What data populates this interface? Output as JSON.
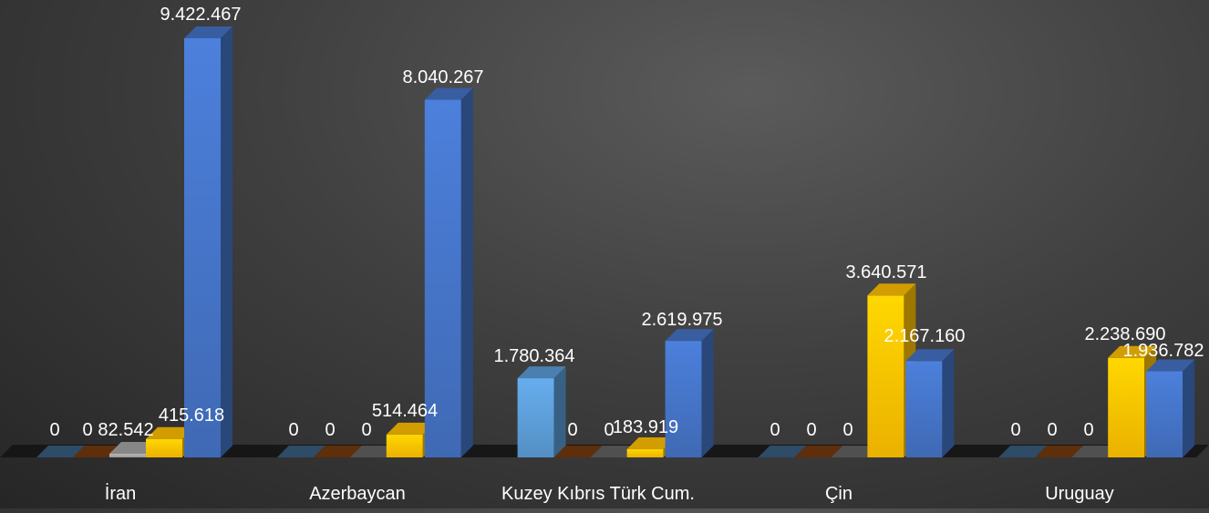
{
  "chart_data": {
    "type": "bar",
    "style": "3d-clustered-column",
    "title": "",
    "xlabel": "",
    "ylabel": "",
    "grid": false,
    "legend": "none",
    "categories": [
      "İran",
      "Azerbaycan",
      "Kuzey Kıbrıs Türk Cum.",
      "Çin",
      "Uruguay"
    ],
    "ylim": [
      0,
      10000000
    ],
    "series": [
      {
        "color": "#5b9bd5",
        "values": [
          0,
          0,
          1780364,
          0,
          0
        ],
        "labels": [
          "0",
          "0",
          "1.780.364",
          "0",
          "0"
        ]
      },
      {
        "color": "#c55a11",
        "values": [
          0,
          0,
          0,
          0,
          0
        ],
        "labels": [
          "0",
          "0",
          "0",
          "0",
          "0"
        ]
      },
      {
        "color": "#a5a5a5",
        "values": [
          82542,
          0,
          0,
          0,
          0
        ],
        "labels": [
          "82.542",
          "0",
          "0",
          "0",
          "0"
        ]
      },
      {
        "color": "#ffc000",
        "values": [
          415618,
          514464,
          183919,
          3640571,
          2238690
        ],
        "labels": [
          "415.618",
          "514.464",
          "183.919",
          "3.640.571",
          "2.238.690"
        ]
      },
      {
        "color": "#4472c4",
        "values": [
          9422467,
          8040267,
          2619975,
          2167160,
          1936782
        ],
        "labels": [
          "9.422.467",
          "8.040.267",
          "2.619.975",
          "2.167.160",
          "1.936.782"
        ]
      }
    ]
  }
}
